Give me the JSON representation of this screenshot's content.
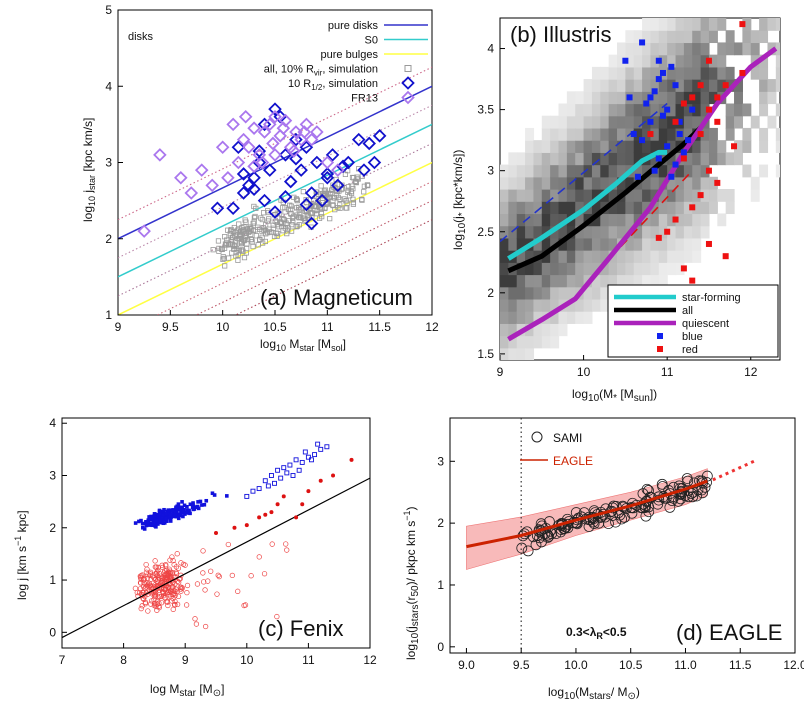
{
  "chart_data": [
    {
      "type": "scatter",
      "panel": "(a) Magneticum",
      "corner_label": "disks",
      "xlabel": "log10 Mstar [Msol]",
      "ylabel": "log10 jstar [kpc km/s]",
      "xlim": [
        9,
        12
      ],
      "ylim": [
        1,
        5
      ],
      "xticks": [
        9,
        9.5,
        10,
        10.5,
        11,
        11.5,
        12
      ],
      "yticks": [
        1,
        2,
        3,
        4,
        5
      ],
      "legend": [
        "pure disks",
        "S0",
        "pure bulges",
        "all, 10% Rvir, simulation",
        "10 R1/2, simulation",
        "FR13"
      ],
      "legend_position": "top-right",
      "lines": [
        {
          "name": "pure disks",
          "color": "#3333cc",
          "x": [
            9,
            12
          ],
          "y": [
            2.0,
            4.0
          ]
        },
        {
          "name": "S0",
          "color": "#33cccc",
          "x": [
            9,
            12
          ],
          "y": [
            1.5,
            3.5
          ]
        },
        {
          "name": "pure bulges",
          "color": "#ffff44",
          "x": [
            9,
            12
          ],
          "y": [
            1.0,
            3.0
          ]
        }
      ],
      "dotted_offsets": [
        0.25,
        -0.25,
        -0.75,
        -1.25,
        -1.5,
        -1.75
      ],
      "series": [
        {
          "name": "10 R1/2, simulation",
          "color": "#1111cc",
          "x": [
            10.3,
            10.35,
            10.4,
            10.5,
            10.55,
            10.6,
            10.7,
            10.75,
            10.8,
            10.85,
            10.9,
            11.0,
            11.05,
            11.1,
            11.2,
            11.3,
            11.4,
            11.5,
            10.2,
            10.25,
            10.45,
            10.65,
            10.95,
            11.15,
            10.35,
            10.6,
            10.8,
            11.0,
            10.1,
            10.2,
            10.5,
            10.4,
            10.7,
            9.95,
            10.3,
            11.35,
            11.45,
            10.15,
            10.85
          ],
          "y": [
            2.8,
            3.0,
            2.5,
            3.7,
            3.6,
            3.1,
            3.3,
            2.9,
            3.2,
            2.6,
            3.0,
            2.85,
            3.1,
            2.7,
            3.0,
            3.3,
            3.25,
            3.35,
            2.6,
            2.7,
            2.9,
            2.75,
            2.5,
            2.95,
            3.15,
            2.55,
            2.45,
            2.8,
            2.4,
            2.85,
            2.35,
            3.5,
            3.05,
            2.4,
            2.65,
            2.9,
            3.0,
            3.2,
            2.2
          ]
        },
        {
          "name": "FR13",
          "color": "#aa77ee",
          "x": [
            9.25,
            9.4,
            9.6,
            9.8,
            9.9,
            10.0,
            10.1,
            10.15,
            10.2,
            10.25,
            10.3,
            10.35,
            10.4,
            10.45,
            10.5,
            10.55,
            10.6,
            10.65,
            10.7,
            10.75,
            10.8,
            10.85,
            10.9,
            11.0,
            11.1,
            10.05,
            10.22,
            10.38,
            10.48,
            10.58,
            10.68,
            10.78,
            9.7,
            10.3,
            10.5
          ],
          "y": [
            2.1,
            3.1,
            2.8,
            2.9,
            2.7,
            3.2,
            3.5,
            3.0,
            3.3,
            3.2,
            3.45,
            3.1,
            3.4,
            3.5,
            3.6,
            3.35,
            3.55,
            3.2,
            3.4,
            3.3,
            3.5,
            3.3,
            3.4,
            3.0,
            2.9,
            2.8,
            3.6,
            3.0,
            3.25,
            3.45,
            3.15,
            3.4,
            2.6,
            2.95,
            3.1
          ]
        }
      ]
    },
    {
      "type": "heatmap",
      "panel": "(b) Illustris",
      "xlabel": "log10(M* [Msun])",
      "ylabel": "log10(j* [kpc*km/s])",
      "xlim": [
        9,
        12.35
      ],
      "ylim": [
        1.45,
        4.25
      ],
      "xticks": [
        9,
        10,
        11,
        12
      ],
      "yticks": [
        1.5,
        2,
        2.5,
        3,
        3.5,
        4
      ],
      "legend": [
        "star-forming",
        "all",
        "quiescent",
        "blue",
        "red"
      ],
      "legend_position": "bottom-right",
      "lines": [
        {
          "name": "star-forming",
          "color": "#22cccc",
          "x": [
            9.1,
            9.5,
            10.0,
            10.4,
            10.7,
            10.9,
            11.0
          ],
          "y": [
            2.28,
            2.45,
            2.68,
            2.9,
            3.08,
            3.15,
            3.15
          ]
        },
        {
          "name": "all",
          "color": "#000000",
          "x": [
            9.1,
            9.5,
            10.0,
            10.5,
            10.9,
            11.2,
            11.4
          ],
          "y": [
            2.18,
            2.3,
            2.55,
            2.82,
            3.05,
            3.22,
            3.35
          ]
        },
        {
          "name": "quiescent",
          "color": "#aa22bb",
          "x": [
            9.1,
            9.5,
            9.9,
            10.3,
            10.8,
            11.2,
            11.6,
            12.0,
            12.3
          ],
          "y": [
            1.62,
            1.78,
            1.95,
            2.28,
            2.7,
            3.15,
            3.55,
            3.85,
            4.0
          ]
        }
      ],
      "dashed": [
        {
          "color": "#2233cc",
          "x": [
            9,
            11.0
          ],
          "y": [
            2.42,
            3.55
          ]
        },
        {
          "color": "#dd1111",
          "x": [
            10.2,
            11.3
          ],
          "y": [
            2.2,
            3.0
          ]
        }
      ],
      "series": [
        {
          "name": "blue",
          "color": "#1122ee",
          "x": [
            10.5,
            10.7,
            10.8,
            10.9,
            11.0,
            11.1,
            11.2,
            10.95,
            11.05,
            11.15,
            10.6,
            10.75,
            10.85,
            11.25,
            10.65,
            10.9,
            11.0,
            11.1,
            10.8,
            10.95,
            11.2,
            11.3,
            10.7,
            11.05,
            10.55,
            10.85,
            11.15,
            10.9
          ],
          "y": [
            3.9,
            4.05,
            3.6,
            3.75,
            3.5,
            3.7,
            3.55,
            3.45,
            3.85,
            3.4,
            3.3,
            3.55,
            3.65,
            3.25,
            2.95,
            3.1,
            3.2,
            3.05,
            3.4,
            3.8,
            3.15,
            3.5,
            3.25,
            2.95,
            3.6,
            3.0,
            3.3,
            3.9
          ]
        },
        {
          "name": "red",
          "color": "#ee1111",
          "x": [
            11.3,
            11.5,
            11.6,
            11.8,
            11.9,
            11.7,
            11.4,
            11.5,
            11.2,
            11.6,
            11.3,
            11.1,
            11.4,
            11.0,
            11.7,
            11.2,
            11.5,
            11.3,
            11.8,
            10.9,
            11.6,
            11.4,
            11.1,
            10.8,
            11.9,
            11.2,
            11.5
          ],
          "y": [
            3.6,
            3.5,
            3.4,
            3.2,
            4.2,
            3.7,
            3.3,
            3.0,
            3.1,
            2.9,
            2.7,
            2.6,
            2.8,
            2.5,
            2.3,
            2.2,
            2.4,
            2.1,
            2.0,
            2.45,
            3.6,
            3.7,
            3.4,
            3.3,
            3.8,
            3.55,
            3.9
          ]
        }
      ]
    },
    {
      "type": "scatter",
      "panel": "(c) Fenix",
      "xlabel": "log Mstar [M⊙]",
      "ylabel": "log j [km s⁻¹ kpc]",
      "xlim": [
        7,
        12
      ],
      "ylim": [
        -0.3,
        4.1
      ],
      "xticks": [
        7,
        8,
        9,
        10,
        11,
        12
      ],
      "yticks": [
        0,
        1,
        2,
        3,
        4
      ],
      "line": {
        "color": "#000000",
        "x": [
          7,
          12
        ],
        "y": [
          -0.1,
          2.95
        ]
      },
      "series": [
        {
          "name": "blue filled",
          "color": "#1111dd",
          "filled": true,
          "n": 190,
          "x_center": 8.6,
          "x_spread": 0.45,
          "y_at": "2.15+0.4*(x-8.5)",
          "y_scatter": 0.15
        },
        {
          "name": "blue open",
          "color": "#1111dd",
          "filled": false,
          "x": [
            10.0,
            10.1,
            10.2,
            10.3,
            10.4,
            10.5,
            10.6,
            10.7,
            10.8,
            10.9,
            11.0,
            11.1,
            11.2,
            11.3,
            10.45,
            10.65,
            10.85,
            11.05,
            10.95,
            10.75,
            11.15,
            10.55,
            10.35
          ],
          "y": [
            2.6,
            2.7,
            2.75,
            2.9,
            3.0,
            3.1,
            3.15,
            3.2,
            3.3,
            3.25,
            3.35,
            3.4,
            3.5,
            3.55,
            2.85,
            3.05,
            3.1,
            3.3,
            3.45,
            3.0,
            3.6,
            2.95,
            2.8
          ]
        },
        {
          "name": "red filled",
          "color": "#dd1111",
          "filled": true,
          "x": [
            9.5,
            9.8,
            10.0,
            10.2,
            10.4,
            10.5,
            10.6,
            10.9,
            11.0,
            11.2,
            11.4,
            11.7,
            10.3,
            10.8
          ],
          "y": [
            1.9,
            2.0,
            2.05,
            2.2,
            2.3,
            2.45,
            2.6,
            2.45,
            2.7,
            2.9,
            3.0,
            3.3,
            2.25,
            2.2
          ]
        },
        {
          "name": "red open",
          "color": "#ee4444",
          "filled": false,
          "n": 260,
          "x_center": 8.6,
          "x_spread": 0.45,
          "y_center": 0.9,
          "y_spread": 0.5
        }
      ]
    },
    {
      "type": "scatter",
      "panel": "(d) EAGLE",
      "annotation": "0.3<λR<0.5",
      "xlabel": "log10(Mstars/ M⊙)",
      "ylabel": "log10(jstars(r50)/ pkpc km s⁻¹)",
      "xlim": [
        8.85,
        12.0
      ],
      "ylim": [
        -0.1,
        3.7
      ],
      "xticks": [
        9.0,
        9.5,
        10.0,
        10.5,
        11.0,
        11.5,
        12.0
      ],
      "yticks": [
        0,
        1,
        2,
        3
      ],
      "vline_x": 9.5,
      "legend": [
        "SAMI",
        "EAGLE"
      ],
      "legend_position": "top-left",
      "eagle": {
        "color": "#cc2200",
        "x": [
          9.0,
          9.5,
          10.0,
          10.5,
          11.0,
          11.2
        ],
        "y": [
          1.62,
          1.8,
          2.05,
          2.28,
          2.55,
          2.68
        ],
        "band_low": [
          1.25,
          1.5,
          1.8,
          2.05,
          2.3,
          2.45
        ],
        "band_high": [
          1.95,
          2.1,
          2.3,
          2.5,
          2.75,
          2.88
        ],
        "dotted_x": [
          11.25,
          11.65
        ],
        "dotted_y": [
          2.7,
          3.02
        ]
      },
      "series": [
        {
          "name": "SAMI",
          "color": "#222222",
          "n": 150,
          "x_min": 9.5,
          "x_max": 11.2,
          "y_at": "1.85+0.52*(x-9.7)",
          "y_scatter": 0.2
        }
      ]
    }
  ]
}
